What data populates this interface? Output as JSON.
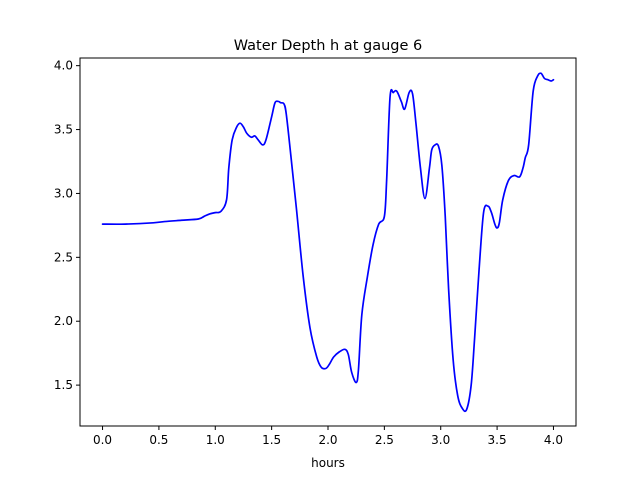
{
  "chart_data": {
    "type": "line",
    "title": "Water Depth h at gauge 6",
    "xlabel": "hours",
    "ylabel": "",
    "xlim": [
      -0.2,
      4.2
    ],
    "ylim": [
      1.18,
      4.06
    ],
    "xticks": [
      0.0,
      0.5,
      1.0,
      1.5,
      2.0,
      2.5,
      3.0,
      3.5,
      4.0
    ],
    "xtick_labels": [
      "0.0",
      "0.5",
      "1.0",
      "1.5",
      "2.0",
      "2.5",
      "3.0",
      "3.5",
      "4.0"
    ],
    "yticks": [
      1.5,
      2.0,
      2.5,
      3.0,
      3.5,
      4.0
    ],
    "ytick_labels": [
      "1.5",
      "2.0",
      "2.5",
      "3.0",
      "3.5",
      "4.0"
    ],
    "grid": false,
    "legend": "none",
    "series": [
      {
        "color": "#0000ff",
        "x": [
          0.0,
          0.2,
          0.45,
          0.55,
          0.7,
          0.85,
          0.9,
          0.95,
          1.0,
          1.05,
          1.1,
          1.12,
          1.15,
          1.19,
          1.22,
          1.25,
          1.28,
          1.32,
          1.35,
          1.38,
          1.42,
          1.45,
          1.5,
          1.53,
          1.56,
          1.58,
          1.61,
          1.63,
          1.67,
          1.72,
          1.78,
          1.84,
          1.9,
          1.94,
          1.98,
          2.01,
          2.05,
          2.1,
          2.15,
          2.18,
          2.21,
          2.25,
          2.27,
          2.3,
          2.35,
          2.4,
          2.45,
          2.5,
          2.52,
          2.55,
          2.58,
          2.61,
          2.65,
          2.68,
          2.72,
          2.75,
          2.78,
          2.82,
          2.86,
          2.9,
          2.92,
          2.95,
          2.98,
          3.01,
          3.04,
          3.07,
          3.11,
          3.15,
          3.19,
          3.23,
          3.27,
          3.3,
          3.34,
          3.38,
          3.42,
          3.45,
          3.48,
          3.5,
          3.52,
          3.55,
          3.6,
          3.65,
          3.7,
          3.73,
          3.75,
          3.78,
          3.82,
          3.86,
          3.89,
          3.92,
          3.95,
          3.98,
          4.0
        ],
        "y": [
          2.76,
          2.76,
          2.77,
          2.78,
          2.79,
          2.8,
          2.82,
          2.84,
          2.85,
          2.86,
          2.95,
          3.2,
          3.42,
          3.52,
          3.55,
          3.52,
          3.47,
          3.44,
          3.45,
          3.42,
          3.38,
          3.42,
          3.6,
          3.71,
          3.72,
          3.71,
          3.7,
          3.62,
          3.3,
          2.88,
          2.35,
          1.95,
          1.72,
          1.64,
          1.63,
          1.66,
          1.72,
          1.76,
          1.78,
          1.74,
          1.6,
          1.52,
          1.62,
          2.05,
          2.35,
          2.6,
          2.76,
          2.82,
          3.1,
          3.75,
          3.79,
          3.8,
          3.72,
          3.66,
          3.79,
          3.78,
          3.55,
          3.2,
          2.96,
          3.2,
          3.34,
          3.38,
          3.37,
          3.22,
          2.82,
          2.25,
          1.7,
          1.42,
          1.32,
          1.31,
          1.5,
          1.86,
          2.4,
          2.85,
          2.9,
          2.85,
          2.76,
          2.73,
          2.77,
          2.95,
          3.1,
          3.14,
          3.13,
          3.2,
          3.28,
          3.38,
          3.8,
          3.92,
          3.94,
          3.9,
          3.89,
          3.88,
          3.89
        ]
      }
    ]
  }
}
